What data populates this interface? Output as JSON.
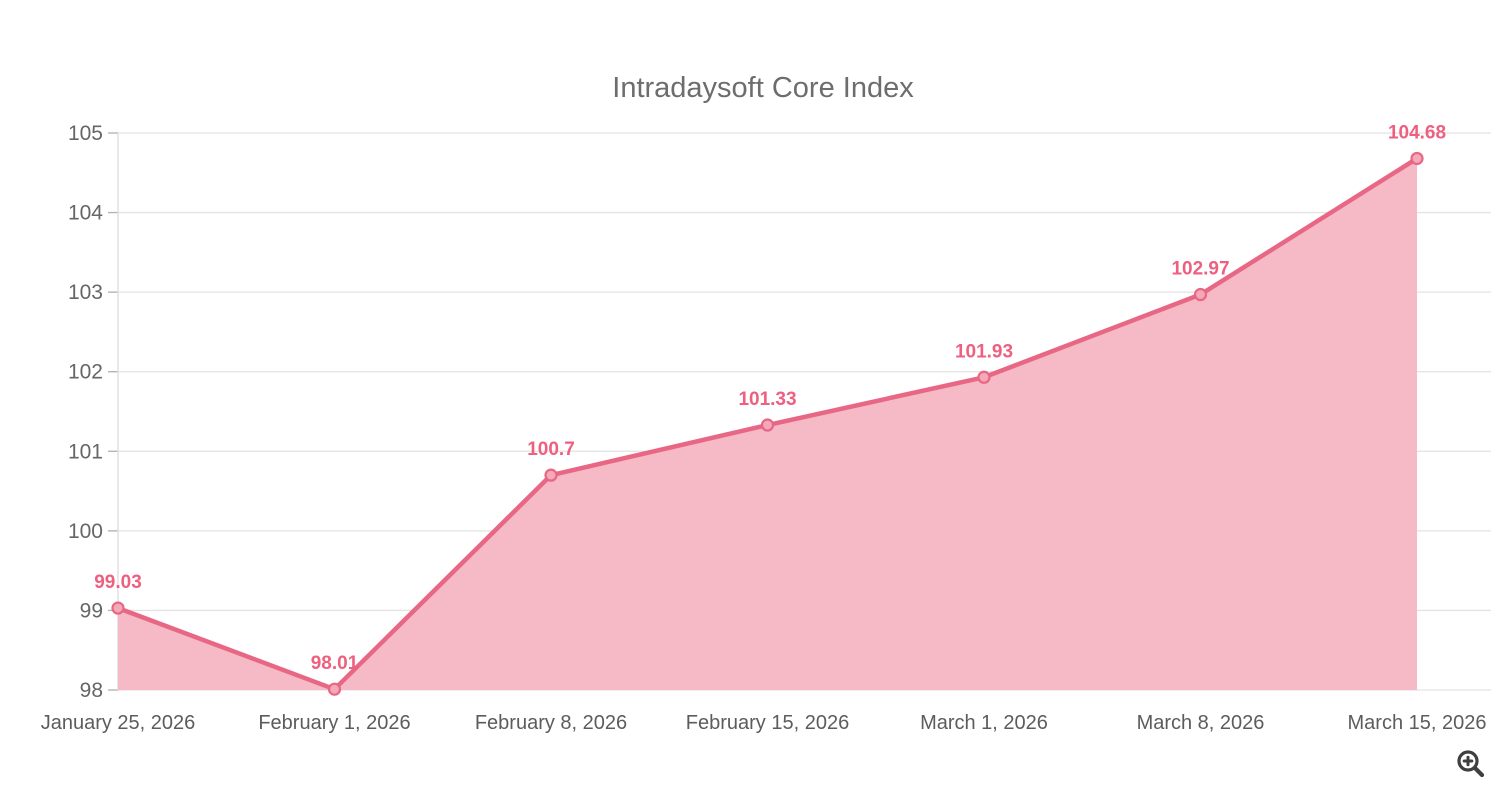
{
  "title": "Intradaysoft Core Index",
  "colors": {
    "line": "#e86785",
    "fill": "#f5bac6",
    "point_fill": "#f3a9b8",
    "data_label": "#ed6080",
    "grid": "#e3e3e3",
    "axis_line": "#dedede",
    "tick_mark": "#b5b5b5",
    "title_text": "#6d6d6d",
    "axis_text": "#666666",
    "icon": "#3f3f3f"
  },
  "toolbar": {
    "zoom_icon": "zoom-in-magnifier"
  },
  "chart_data": {
    "type": "area",
    "title": "Intradaysoft Core Index",
    "categories": [
      "January 25, 2026",
      "February 1, 2026",
      "February 8, 2026",
      "February 15, 2026",
      "March 1, 2026",
      "March 8, 2026",
      "March 15, 2026"
    ],
    "values": [
      99.03,
      98.01,
      100.7,
      101.33,
      101.93,
      102.97,
      104.68
    ],
    "point_labels": [
      "99.03",
      "98.01",
      "100.7",
      "101.33",
      "101.93",
      "102.97",
      "104.68"
    ],
    "xlabel": "",
    "ylabel": "",
    "ylim": [
      98,
      105
    ],
    "yticks": [
      98,
      99,
      100,
      101,
      102,
      103,
      104,
      105
    ],
    "grid": true,
    "legend_position": "none"
  }
}
